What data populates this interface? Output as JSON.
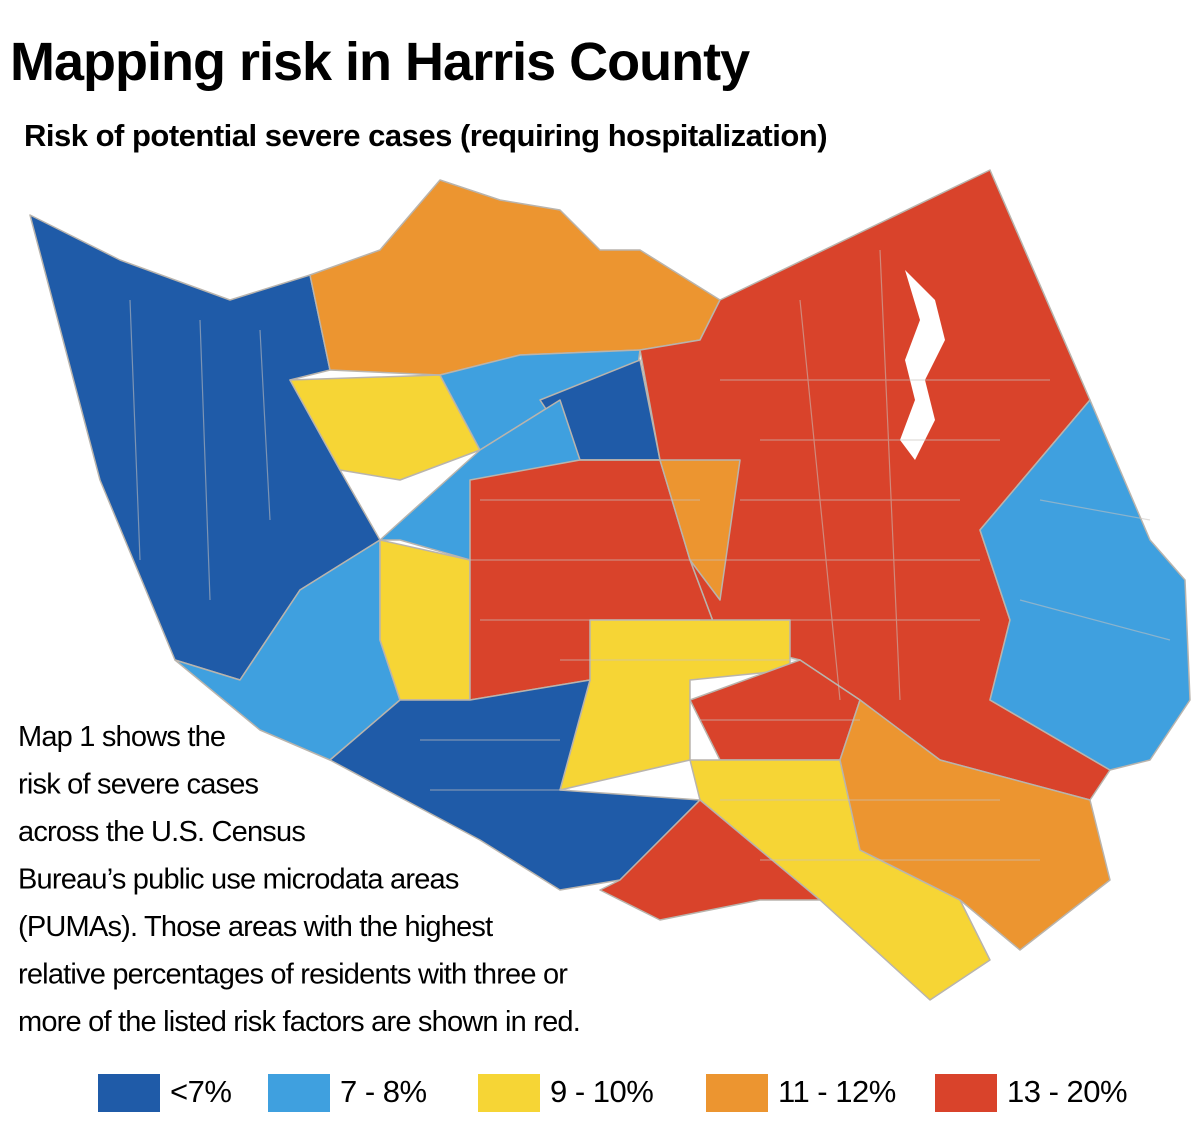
{
  "header": {
    "title": "Mapping risk in Harris County",
    "subtitle": "Risk of potential severe cases (requiring hospitalization)"
  },
  "description": [
    "Map 1 shows the",
    "risk of severe cases",
    "across the U.S. Census",
    "Bureau’s public use microdata  areas",
    "(PUMAs). Those areas with the highest",
    "relative percentages of residents with three or",
    "more of the listed risk factors are shown in red."
  ],
  "legend": [
    {
      "label": "<7%",
      "color": "#1f5ba8"
    },
    {
      "label": "7 - 8%",
      "color": "#3fa0df"
    },
    {
      "label": "9 - 10%",
      "color": "#f6d535"
    },
    {
      "label": "11 - 12%",
      "color": "#ec9530"
    },
    {
      "label": "13 - 20%",
      "color": "#d9432b"
    }
  ]
}
